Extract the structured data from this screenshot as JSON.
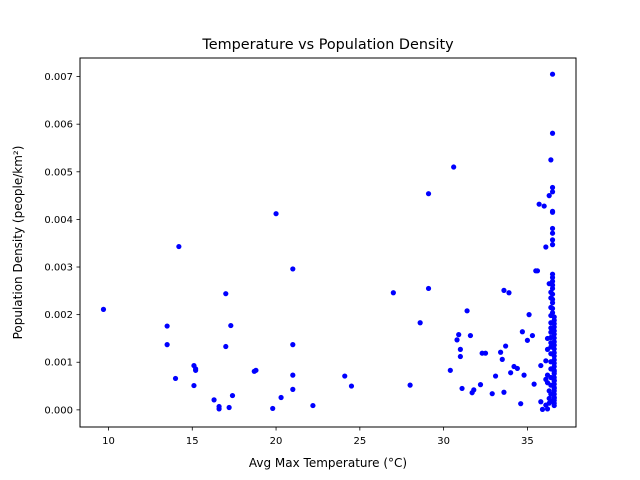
{
  "chart_data": {
    "type": "scatter",
    "title": "Temperature vs Population Density",
    "xlabel": "Avg Max Temperature (°C)",
    "ylabel": "Population Density (people/km²)",
    "xlim": [
      8.3,
      37.9
    ],
    "ylim": [
      -0.00036,
      0.00739
    ],
    "xticks": [
      10,
      15,
      20,
      25,
      30,
      35
    ],
    "xtick_labels": [
      "10",
      "15",
      "20",
      "25",
      "30",
      "35"
    ],
    "yticks": [
      0.0,
      0.001,
      0.002,
      0.003,
      0.004,
      0.005,
      0.006,
      0.007
    ],
    "ytick_labels": [
      "0.000",
      "0.001",
      "0.002",
      "0.003",
      "0.004",
      "0.005",
      "0.006",
      "0.007"
    ],
    "grid": false,
    "marker_color": "#0000ff",
    "series": [
      {
        "x": [
          9.7,
          13.5,
          13.5,
          14.0,
          14.2,
          15.1,
          15.2,
          15.1,
          15.2,
          16.3,
          16.6,
          16.6,
          17.0,
          17.0,
          17.2,
          17.3,
          17.4,
          18.7,
          18.8,
          19.8,
          20.0,
          20.3,
          21.0,
          21.0,
          21.0,
          21.0,
          22.2,
          24.1,
          24.5,
          27.0,
          28.0,
          28.6,
          29.1,
          29.1,
          30.4,
          30.6,
          30.8,
          30.9,
          31.0,
          31.0,
          31.1,
          31.4,
          31.6,
          31.7,
          31.8,
          32.2,
          32.3,
          32.5,
          32.9,
          33.1,
          33.4,
          33.5,
          33.6,
          33.6,
          33.7,
          33.9,
          34.0,
          34.2,
          34.4,
          34.6,
          34.7,
          34.8,
          35.0,
          35.1,
          35.3,
          35.4,
          35.5,
          35.6,
          35.7,
          35.8,
          35.8,
          35.9,
          36.0,
          36.1,
          36.1,
          36.1,
          36.1,
          36.2,
          36.2,
          36.2,
          36.2,
          36.2,
          36.3,
          36.3,
          36.3
        ],
        "y": [
          0.00211,
          0.00176,
          0.00137,
          0.00066,
          0.00343,
          0.00093,
          0.00083,
          0.00051,
          0.00086,
          0.00021,
          7e-05,
          2e-05,
          0.00244,
          0.00133,
          5e-05,
          0.00177,
          0.0003,
          0.00081,
          0.00083,
          3e-05,
          0.00412,
          0.00026,
          0.00296,
          0.00137,
          0.00073,
          0.00043,
          9e-05,
          0.00071,
          0.0005,
          0.00246,
          0.00052,
          0.00183,
          0.00454,
          0.00255,
          0.00083,
          0.0051,
          0.00147,
          0.00158,
          0.00127,
          0.00112,
          0.00045,
          0.00208,
          0.00156,
          0.00036,
          0.00042,
          0.00053,
          0.00119,
          0.00119,
          0.00034,
          0.00071,
          0.00121,
          0.00106,
          0.00037,
          0.00251,
          0.00134,
          0.00246,
          0.00078,
          0.00091,
          0.00087,
          0.00013,
          0.00164,
          0.00073,
          0.00146,
          0.002,
          0.00156,
          0.00054,
          0.00292,
          0.00292,
          0.00432,
          0.00093,
          0.00017,
          1e-05,
          0.00428,
          0.00103,
          0.00342,
          0.00064,
          0.0001,
          2e-05,
          0.00057,
          0.0015,
          0.00127,
          0.00073,
          0.00014,
          0.0004,
          0.00024
        ]
      },
      {
        "x": [
          36.3,
          36.3,
          36.4,
          36.4,
          36.4,
          36.4,
          36.4,
          36.4,
          36.4,
          36.4,
          36.4,
          36.4,
          36.4,
          36.4,
          36.4,
          36.4,
          36.4,
          36.4,
          36.4,
          36.4,
          36.5,
          36.5,
          36.5,
          36.5,
          36.5,
          36.5,
          36.5,
          36.5,
          36.5,
          36.5,
          36.5,
          36.5,
          36.5,
          36.5,
          36.5,
          36.5,
          36.5,
          36.5,
          36.5,
          36.5,
          36.6,
          36.6,
          36.6,
          36.6,
          36.6,
          36.6,
          36.6,
          36.6,
          36.6,
          36.6,
          36.6,
          36.6,
          36.6,
          36.6,
          36.6,
          36.6,
          36.6,
          36.6,
          36.6,
          36.6,
          36.6,
          36.6,
          36.6,
          36.6,
          36.6,
          36.6,
          36.6,
          36.6,
          36.6,
          36.6,
          36.6
        ],
        "y": [
          0.00265,
          0.0045,
          0.00525,
          0.00247,
          0.00235,
          0.00215,
          0.00198,
          0.00183,
          0.00172,
          0.00163,
          0.00152,
          0.00141,
          0.00132,
          0.00118,
          0.00101,
          0.00086,
          0.00068,
          0.00052,
          0.00033,
          0.00018,
          0.00705,
          0.00581,
          0.00467,
          0.00458,
          0.00417,
          0.00415,
          0.00381,
          0.00371,
          0.00357,
          0.00347,
          0.00285,
          0.00278,
          0.0027,
          0.00262,
          0.00255,
          0.00243,
          0.00232,
          0.00225,
          0.00213,
          0.00204,
          0.00195,
          0.00188,
          0.00181,
          0.00174,
          0.00166,
          0.00159,
          0.00151,
          0.00143,
          0.00136,
          0.00128,
          0.0012,
          0.00113,
          0.00105,
          0.00098,
          0.00091,
          0.00083,
          0.00076,
          0.00068,
          0.00061,
          0.00054,
          0.00047,
          0.0004,
          0.00033,
          0.00026,
          0.0002,
          0.00014,
          9e-05,
          0.00025,
          0.00045,
          0.00062,
          0.0008
        ]
      }
    ]
  }
}
